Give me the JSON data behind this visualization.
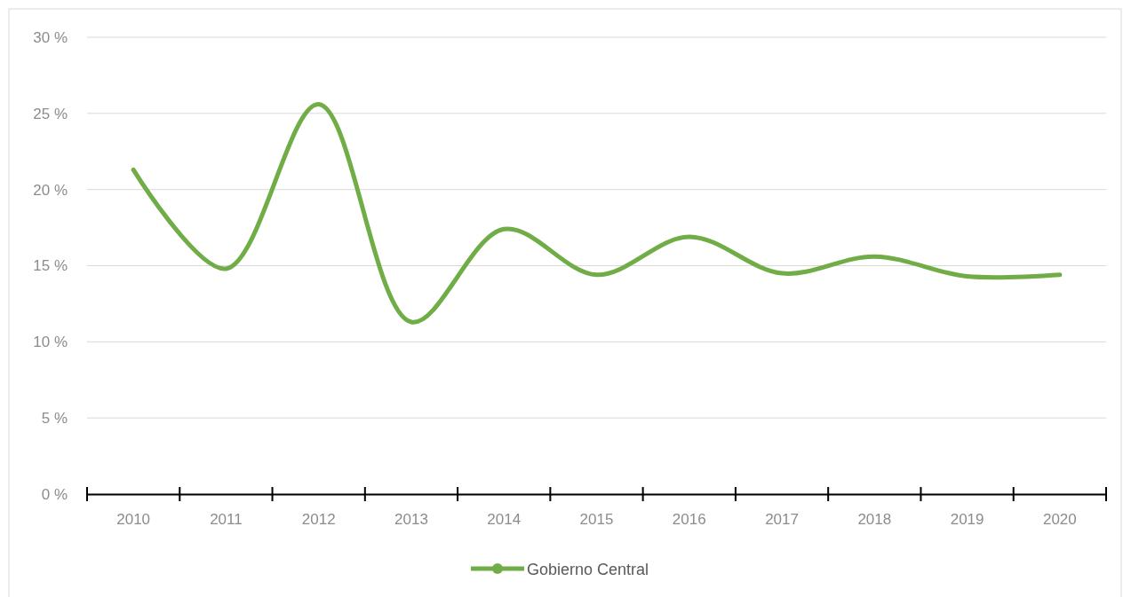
{
  "chart_data": {
    "type": "line",
    "categories": [
      "2010",
      "2011",
      "2012",
      "2013",
      "2014",
      "2015",
      "2016",
      "2017",
      "2018",
      "2019",
      "2020"
    ],
    "series": [
      {
        "name": "Gobierno Central",
        "color": "#70ad47",
        "values": [
          21.3,
          14.8,
          25.6,
          11.3,
          17.4,
          14.4,
          16.9,
          14.5,
          15.6,
          14.3,
          14.4
        ]
      }
    ],
    "ylim": [
      0,
      30
    ],
    "yticks": [
      {
        "value": 0,
        "label": "0 %"
      },
      {
        "value": 5,
        "label": "5 %"
      },
      {
        "value": 10,
        "label": "10 %"
      },
      {
        "value": 15,
        "label": "15 %"
      },
      {
        "value": 20,
        "label": "20 %"
      },
      {
        "value": 25,
        "label": "25 %"
      },
      {
        "value": 30,
        "label": "30 %"
      }
    ],
    "grid": "y",
    "legend": "bottom",
    "marker": "none",
    "line_style": "solid"
  }
}
